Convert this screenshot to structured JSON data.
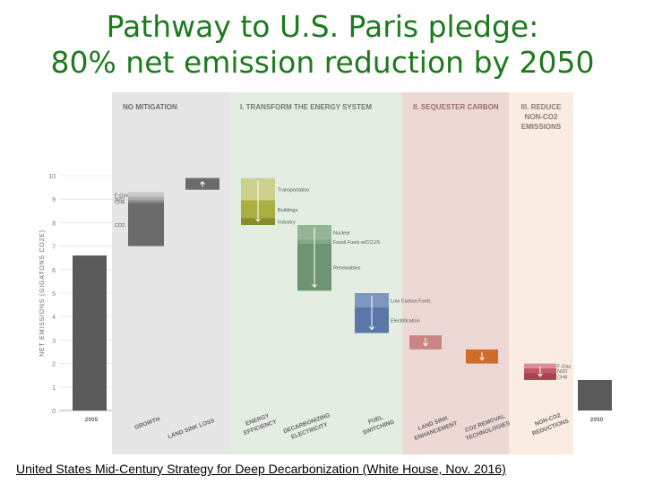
{
  "title": {
    "line1": "Pathway to U.S. Paris pledge:",
    "line2": "80% net emission reduction by 2050"
  },
  "caption": "United States Mid-Century Strategy for Deep Decarbonization (White House, Nov. 2016)",
  "chart_data": {
    "type": "bar",
    "ylabel": "NET EMISSIONS (GIGATONS CO2E)",
    "ylim": [
      0,
      10
    ],
    "yticks": [
      "0",
      "1",
      "2",
      "3",
      "4",
      "5",
      "6",
      "7",
      "8",
      "9",
      "10"
    ],
    "panels": [
      {
        "label_lines": [
          "NO MITIGATION"
        ],
        "color": "#e6e6e6"
      },
      {
        "label_lines": [
          "I. TRANSFORM THE ENERGY SYSTEM"
        ],
        "color": "#e3ede2"
      },
      {
        "label_lines": [
          "II. SEQUESTER CARBON"
        ],
        "color": "#ecd9d5"
      },
      {
        "label_lines": [
          "III. REDUCE",
          "NON-CO2",
          "EMISSIONS"
        ],
        "color": "#faece0"
      }
    ],
    "bars": [
      {
        "id": "2005",
        "label_lines": [
          "2005"
        ],
        "bottom": 0,
        "top": 6.6,
        "color": "#5a5a5a",
        "arrow": "none",
        "segments": []
      },
      {
        "id": "growth",
        "label_lines": [
          "GROWTH"
        ],
        "bottom": 7.0,
        "top": 9.3,
        "color": "#6b6b6b",
        "arrow": "none",
        "segments": [
          {
            "bottom": 9.1,
            "top": 9.3,
            "color": "#c8c8c8",
            "label": "F-Gas"
          },
          {
            "bottom": 8.95,
            "top": 9.1,
            "color": "#aaaaaa",
            "label": "N2O"
          },
          {
            "bottom": 8.85,
            "top": 8.95,
            "color": "#8a8a8a",
            "label": "CH4"
          },
          {
            "bottom": 7.0,
            "top": 8.85,
            "color": "#6b6b6b",
            "label": "CO2"
          }
        ]
      },
      {
        "id": "land-sink-loss",
        "label_lines": [
          "LAND SINK LOSS"
        ],
        "bottom": 9.4,
        "top": 9.9,
        "color": "#6b6b6b",
        "arrow": "up",
        "segments": []
      },
      {
        "id": "energy-efficiency",
        "label_lines": [
          "ENERGY",
          "EFFICIENCY"
        ],
        "bottom": 7.9,
        "top": 9.9,
        "color": "#aab247",
        "arrow": "down",
        "segments": [
          {
            "bottom": 8.95,
            "top": 9.9,
            "color": "#ccd28e",
            "label": "Transportation"
          },
          {
            "bottom": 8.2,
            "top": 8.95,
            "color": "#a9b03f",
            "label": "Buildings"
          },
          {
            "bottom": 7.9,
            "top": 8.2,
            "color": "#858c2a",
            "label": "Industry"
          }
        ]
      },
      {
        "id": "decarbonizing-electricity",
        "label_lines": [
          "DECARBONIZING",
          "ELECTRICITY"
        ],
        "bottom": 5.1,
        "top": 7.9,
        "color": "#6e9471",
        "arrow": "down",
        "segments": [
          {
            "bottom": 7.3,
            "top": 7.9,
            "color": "#93b593",
            "label": "Nuclear"
          },
          {
            "bottom": 7.1,
            "top": 7.3,
            "color": "#84a885",
            "label": "Fossil Fuels w/CCUS"
          },
          {
            "bottom": 5.1,
            "top": 7.1,
            "color": "#6e9471",
            "label": "Renewables"
          }
        ]
      },
      {
        "id": "fuel-switching",
        "label_lines": [
          "FUEL",
          "SWITCHING"
        ],
        "bottom": 3.3,
        "top": 5.0,
        "color": "#5a77a8",
        "arrow": "down",
        "segments": [
          {
            "bottom": 4.4,
            "top": 5.0,
            "color": "#7f97c0",
            "label": "Low Carbon Fuels"
          },
          {
            "bottom": 3.3,
            "top": 4.4,
            "color": "#5a77a8",
            "label": "Electrification"
          }
        ]
      },
      {
        "id": "land-sink-enhancement",
        "label_lines": [
          "LAND SINK",
          "ENHANCEMENT"
        ],
        "bottom": 2.6,
        "top": 3.2,
        "color": "#c98683",
        "arrow": "down",
        "segments": []
      },
      {
        "id": "co2-removal",
        "label_lines": [
          "CO2 REMOVAL",
          "TECHNOLOGIES"
        ],
        "bottom": 2.0,
        "top": 2.6,
        "color": "#d06b2a",
        "arrow": "down",
        "segments": []
      },
      {
        "id": "non-co2-reductions",
        "label_lines": [
          "NON-CO2",
          "REDUCTIONS"
        ],
        "bottom": 1.3,
        "top": 2.0,
        "color": "#c25a66",
        "arrow": "down",
        "segments": [
          {
            "bottom": 1.8,
            "top": 2.0,
            "color": "#d98f96",
            "label": "F-Gas"
          },
          {
            "bottom": 1.6,
            "top": 1.8,
            "color": "#c25a66",
            "label": "N2O"
          },
          {
            "bottom": 1.3,
            "top": 1.6,
            "color": "#a84452",
            "label": "CH4"
          }
        ]
      },
      {
        "id": "2050",
        "label_lines": [
          "2050"
        ],
        "bottom": 0,
        "top": 1.3,
        "color": "#5a5a5a",
        "arrow": "none",
        "segments": []
      }
    ]
  }
}
